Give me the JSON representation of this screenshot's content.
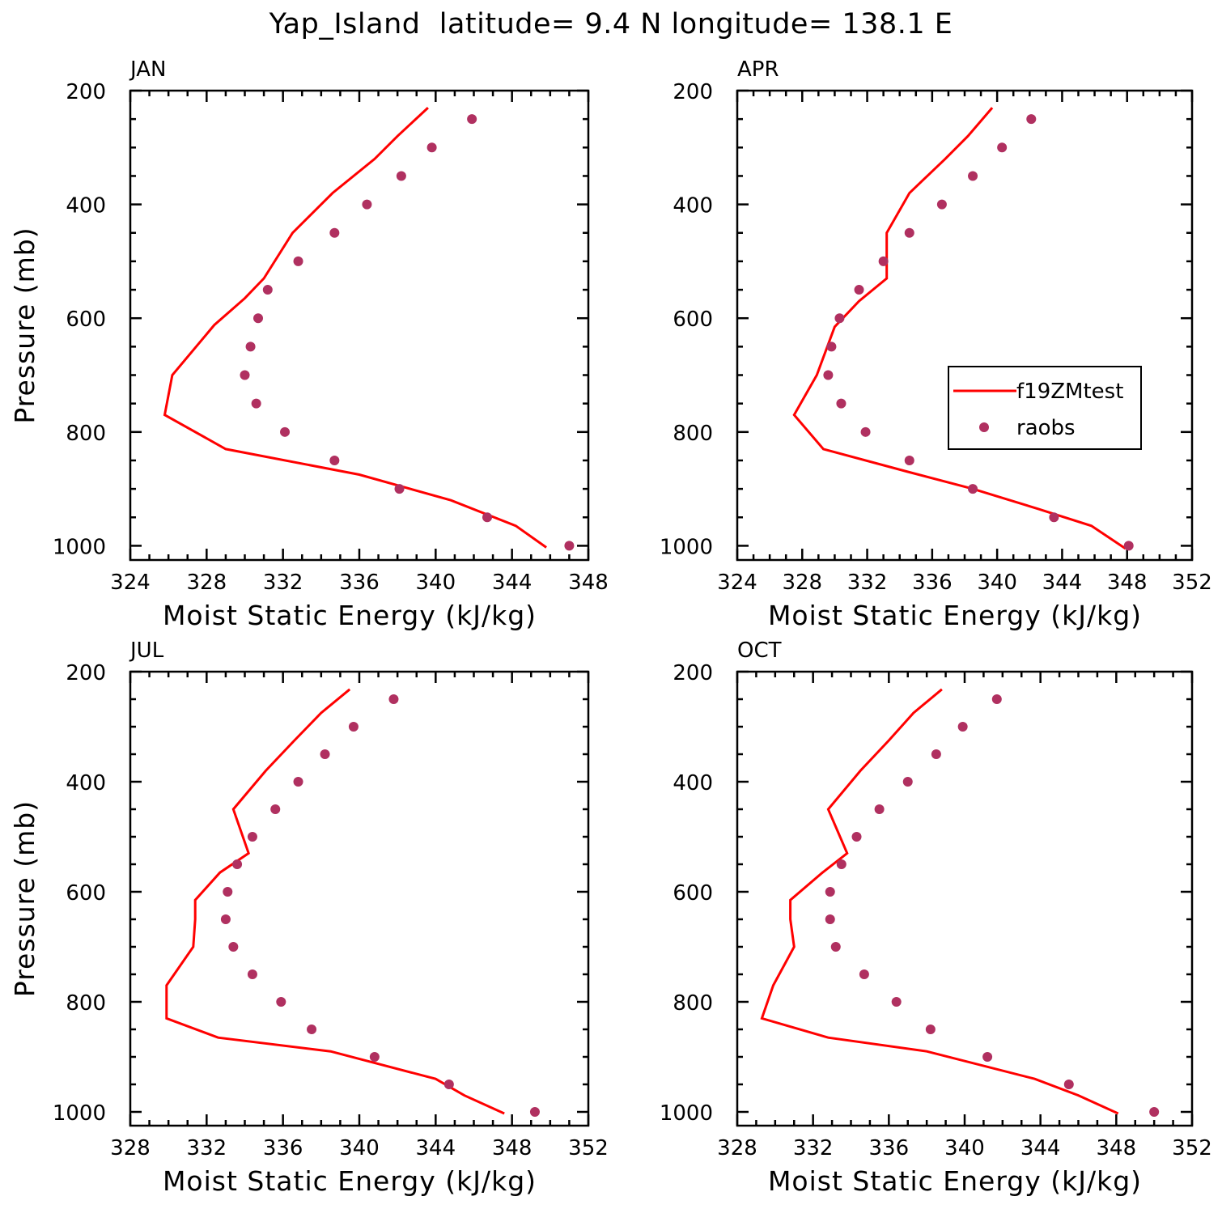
{
  "title": "Yap_Island  latitude= 9.4 N longitude= 138.1 E",
  "colors": {
    "model_line": "#ff0000",
    "obs_marker": "#b03060",
    "axes": "#000000"
  },
  "legend": {
    "placement": "inside APR panel, right-middle",
    "entries": [
      {
        "label": "f19ZMtest",
        "style": "line"
      },
      {
        "label": "raobs",
        "style": "marker"
      }
    ]
  },
  "chart_data": [
    {
      "type": "line",
      "panel_label": "JAN",
      "xlabel": "Moist Static Energy (kJ/kg)",
      "ylabel": "Pressure (mb)",
      "xlim": [
        324,
        348
      ],
      "ylim": [
        1000,
        200
      ],
      "xticks": [
        324,
        328,
        332,
        336,
        340,
        344,
        348
      ],
      "yticks": [
        200,
        400,
        600,
        800,
        1000
      ],
      "show_ylabel": true,
      "legend": false,
      "series": [
        {
          "name": "f19ZMtest",
          "style": "line",
          "x": [
            339.6,
            338.0,
            336.8,
            334.6,
            332.5,
            331.0,
            330.0,
            328.4,
            326.2,
            325.8,
            329.0,
            336.0,
            340.8,
            344.2,
            345.8
          ],
          "y": [
            230,
            280,
            320,
            380,
            450,
            530,
            565,
            612,
            700,
            770,
            830,
            875,
            920,
            965,
            1003
          ]
        },
        {
          "name": "raobs",
          "style": "marker",
          "x": [
            341.9,
            339.8,
            338.2,
            336.4,
            334.7,
            332.8,
            331.2,
            330.7,
            330.3,
            330.0,
            330.6,
            332.1,
            334.7,
            338.1,
            342.7,
            347.0
          ],
          "y": [
            250,
            300,
            350,
            400,
            450,
            500,
            550,
            600,
            650,
            700,
            750,
            800,
            850,
            900,
            950,
            1000
          ]
        }
      ]
    },
    {
      "type": "line",
      "panel_label": "APR",
      "xlabel": "Moist Static Energy (kJ/kg)",
      "ylabel": "Pressure (mb)",
      "xlim": [
        324,
        352
      ],
      "ylim": [
        1000,
        200
      ],
      "xticks": [
        324,
        328,
        332,
        336,
        340,
        344,
        348,
        352
      ],
      "yticks": [
        200,
        400,
        600,
        800,
        1000
      ],
      "show_ylabel": false,
      "legend": true,
      "series": [
        {
          "name": "f19ZMtest",
          "style": "line",
          "x": [
            339.7,
            338.2,
            336.8,
            334.6,
            333.2,
            333.2,
            331.5,
            330.0,
            328.9,
            327.5,
            329.3,
            334.5,
            338.5,
            342.5,
            345.8,
            347.9
          ],
          "y": [
            230,
            280,
            320,
            380,
            450,
            530,
            570,
            615,
            700,
            770,
            830,
            870,
            900,
            935,
            965,
            1005
          ]
        },
        {
          "name": "raobs",
          "style": "marker",
          "x": [
            342.1,
            340.3,
            338.5,
            336.6,
            334.6,
            333.0,
            331.5,
            330.3,
            329.8,
            329.6,
            330.4,
            331.9,
            334.6,
            338.5,
            343.5,
            348.1
          ],
          "y": [
            250,
            300,
            350,
            400,
            450,
            500,
            550,
            600,
            650,
            700,
            750,
            800,
            850,
            900,
            950,
            1000
          ]
        }
      ]
    },
    {
      "type": "line",
      "panel_label": "JUL",
      "xlabel": "Moist Static Energy (kJ/kg)",
      "ylabel": "Pressure (mb)",
      "xlim": [
        328,
        352
      ],
      "ylim": [
        1000,
        200
      ],
      "xticks": [
        328,
        332,
        336,
        340,
        344,
        348,
        352
      ],
      "yticks": [
        200,
        400,
        600,
        800,
        1000
      ],
      "show_ylabel": true,
      "legend": false,
      "series": [
        {
          "name": "f19ZMtest",
          "style": "line",
          "x": [
            339.5,
            338.0,
            336.6,
            335.1,
            333.4,
            334.2,
            332.7,
            331.4,
            331.4,
            331.3,
            329.9,
            329.9,
            332.6,
            338.5,
            344.0,
            345.5,
            347.6
          ],
          "y": [
            232,
            275,
            325,
            380,
            450,
            530,
            565,
            615,
            650,
            700,
            770,
            830,
            865,
            890,
            940,
            970,
            1003
          ]
        },
        {
          "name": "raobs",
          "style": "marker",
          "x": [
            341.8,
            339.7,
            338.2,
            336.8,
            335.6,
            334.4,
            333.6,
            333.1,
            333.0,
            333.4,
            334.4,
            335.9,
            337.5,
            340.8,
            344.7,
            349.2
          ],
          "y": [
            250,
            300,
            350,
            400,
            450,
            500,
            550,
            600,
            650,
            700,
            750,
            800,
            850,
            900,
            950,
            1000
          ]
        }
      ]
    },
    {
      "type": "line",
      "panel_label": "OCT",
      "xlabel": "Moist Static Energy (kJ/kg)",
      "ylabel": "Pressure (mb)",
      "xlim": [
        328,
        352
      ],
      "ylim": [
        1000,
        200
      ],
      "xticks": [
        328,
        332,
        336,
        340,
        344,
        348,
        352
      ],
      "yticks": [
        200,
        400,
        600,
        800,
        1000
      ],
      "show_ylabel": false,
      "legend": false,
      "series": [
        {
          "name": "f19ZMtest",
          "style": "line",
          "x": [
            338.8,
            337.3,
            336.0,
            334.5,
            332.8,
            333.8,
            332.5,
            330.8,
            330.8,
            331.0,
            329.9,
            329.3,
            332.8,
            338.0,
            343.7,
            346.0,
            348.1
          ],
          "y": [
            232,
            275,
            325,
            380,
            450,
            530,
            565,
            615,
            650,
            700,
            770,
            830,
            865,
            890,
            940,
            970,
            1003
          ]
        },
        {
          "name": "raobs",
          "style": "marker",
          "x": [
            341.7,
            339.9,
            338.5,
            337.0,
            335.5,
            334.3,
            333.5,
            332.9,
            332.9,
            333.2,
            334.7,
            336.4,
            338.2,
            341.2,
            345.5,
            350.0
          ],
          "y": [
            250,
            300,
            350,
            400,
            450,
            500,
            550,
            600,
            650,
            700,
            750,
            800,
            850,
            900,
            950,
            1000
          ]
        }
      ]
    }
  ]
}
